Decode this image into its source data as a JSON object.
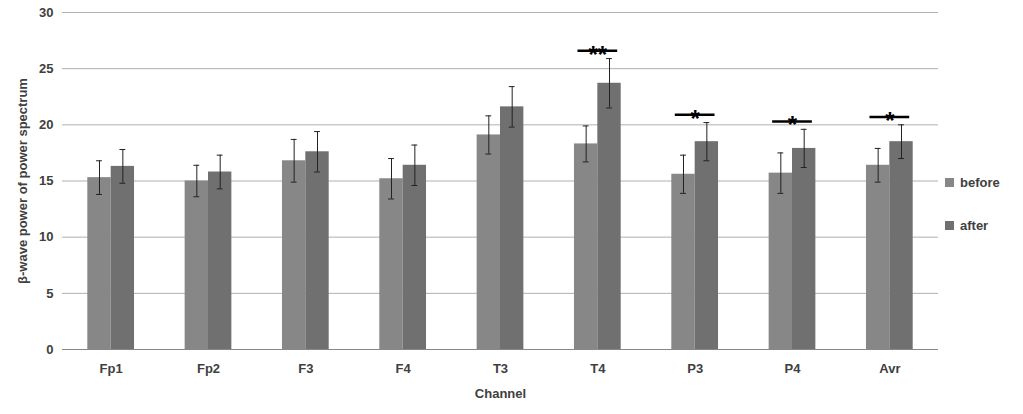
{
  "chart_data": {
    "type": "bar",
    "x_label": "Channel",
    "y_label": "β-wave power of power spectrum",
    "categories": [
      "Fp1",
      "Fp2",
      "F3",
      "F4",
      "T3",
      "T4",
      "P3",
      "P4",
      "Avr"
    ],
    "series": [
      {
        "name": "before",
        "color": "#878787",
        "values": [
          15.3,
          15.0,
          16.8,
          15.2,
          19.1,
          18.3,
          15.6,
          15.7,
          16.4
        ],
        "errors": [
          1.5,
          1.4,
          1.9,
          1.8,
          1.7,
          1.6,
          1.7,
          1.8,
          1.5
        ]
      },
      {
        "name": "after",
        "color": "#707070",
        "values": [
          16.3,
          15.8,
          17.6,
          16.4,
          21.6,
          23.7,
          18.5,
          17.9,
          18.5
        ],
        "errors": [
          1.5,
          1.5,
          1.8,
          1.8,
          1.8,
          2.2,
          1.7,
          1.7,
          1.5
        ]
      }
    ],
    "ylim": [
      0,
      30
    ],
    "yticks": [
      0,
      5,
      10,
      15,
      20,
      25,
      30
    ],
    "grid": true,
    "legend": "right",
    "annotations": [
      {
        "category": "T4",
        "label": "**"
      },
      {
        "category": "P3",
        "label": "*"
      },
      {
        "category": "P4",
        "label": "*"
      },
      {
        "category": "Avr",
        "label": "*"
      }
    ]
  }
}
